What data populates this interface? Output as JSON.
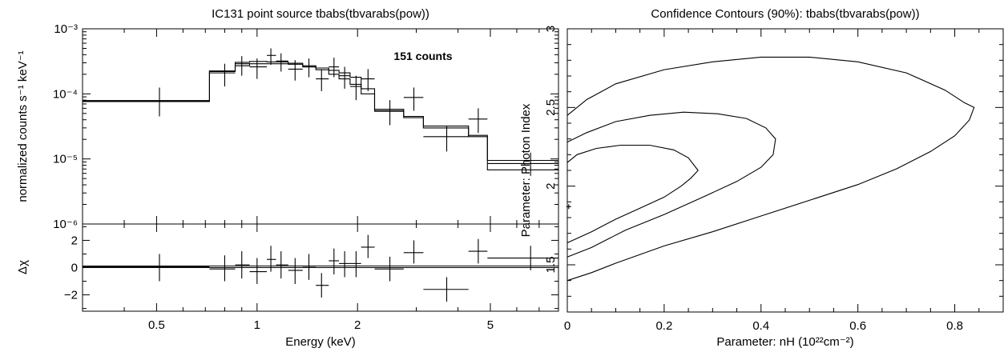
{
  "chart_data": [
    {
      "type": "line",
      "title": "IC131 point source tbabs(tbvarabs(pow))",
      "annotation": "151 counts",
      "xlabel": "Energy (keV)",
      "xscale": "log",
      "xlim": [
        0.3,
        8.0
      ],
      "xticks": [
        0.5,
        1,
        2,
        5
      ],
      "xtick_labels": [
        "0.5",
        "1",
        "2",
        "5"
      ],
      "top_panel": {
        "ylabel": "normalized counts s⁻¹ keV⁻¹",
        "yscale": "log",
        "ylim": [
          1e-06,
          0.001
        ],
        "ytick_labels": [
          "10⁻³",
          "10⁻⁴",
          "10⁻⁵",
          "10⁻⁶"
        ],
        "data_points": [
          {
            "x": 0.51,
            "xerr": [
              0.3,
              0.72
            ],
            "y": 7.7e-05,
            "yerr": [
              4.5e-05,
              0.000125
            ]
          },
          {
            "x": 0.8,
            "xerr": [
              0.72,
              0.86
            ],
            "y": 0.00021,
            "yerr": [
              0.00013,
              0.00029
            ]
          },
          {
            "x": 0.9,
            "xerr": [
              0.86,
              0.95
            ],
            "y": 0.00029,
            "yerr": [
              0.00019,
              0.00038
            ]
          },
          {
            "x": 1.0,
            "xerr": [
              0.95,
              1.07
            ],
            "y": 0.00026,
            "yerr": [
              0.00017,
              0.00035
            ]
          },
          {
            "x": 1.1,
            "xerr": [
              1.07,
              1.14
            ],
            "y": 0.00039,
            "yerr": [
              0.00028,
              0.0005
            ]
          },
          {
            "x": 1.18,
            "xerr": [
              1.14,
              1.24
            ],
            "y": 0.00032,
            "yerr": [
              0.00022,
              0.00042
            ]
          },
          {
            "x": 1.3,
            "xerr": [
              1.24,
              1.37
            ],
            "y": 0.00024,
            "yerr": [
              0.00016,
              0.00033
            ]
          },
          {
            "x": 1.43,
            "xerr": [
              1.37,
              1.5
            ],
            "y": 0.00026,
            "yerr": [
              0.00018,
              0.00035
            ]
          },
          {
            "x": 1.56,
            "xerr": [
              1.5,
              1.64
            ],
            "y": 0.00017,
            "yerr": [
              0.00011,
              0.00024
            ]
          },
          {
            "x": 1.7,
            "xerr": [
              1.64,
              1.76
            ],
            "y": 0.00026,
            "yerr": [
              0.00018,
              0.00036
            ]
          },
          {
            "x": 1.83,
            "xerr": [
              1.76,
              1.9
            ],
            "y": 0.00019,
            "yerr": [
              0.00012,
              0.00026
            ]
          },
          {
            "x": 1.98,
            "xerr": [
              1.9,
              2.05
            ],
            "y": 0.00013,
            "yerr": [
              8e-05,
              0.00019
            ]
          },
          {
            "x": 2.15,
            "xerr": [
              2.05,
              2.25
            ],
            "y": 0.00017,
            "yerr": [
              0.00011,
              0.00024
            ]
          },
          {
            "x": 2.5,
            "xerr": [
              2.25,
              2.75
            ],
            "y": 5.5e-05,
            "yerr": [
              3.3e-05,
              8e-05
            ]
          },
          {
            "x": 2.95,
            "xerr": [
              2.75,
              3.15
            ],
            "y": 8.8e-05,
            "yerr": [
              5.5e-05,
              0.000125
            ]
          },
          {
            "x": 3.7,
            "xerr": [
              3.15,
              4.3
            ],
            "y": 2.2e-05,
            "yerr": [
              1.3e-05,
              3.2e-05
            ]
          },
          {
            "x": 4.6,
            "xerr": [
              4.3,
              4.9
            ],
            "y": 4.1e-05,
            "yerr": [
              2.5e-05,
              6e-05
            ]
          },
          {
            "x": 6.6,
            "xerr": [
              4.9,
              8.0
            ],
            "y": 8.5e-06,
            "yerr": [
              5.5e-06,
              1.25e-05
            ]
          }
        ],
        "model_steps": [
          {
            "name": "model-a",
            "edges": [
              0.3,
              0.72,
              0.86,
              0.95,
              1.07,
              1.24,
              1.37,
              1.5,
              1.64,
              1.76,
              1.9,
              2.05,
              2.25,
              2.75,
              3.15,
              4.3,
              4.9,
              8.0
            ],
            "values": [
              7.9e-05,
              0.000225,
              0.000305,
              0.000315,
              0.00031,
              0.000295,
              0.00027,
              0.00025,
              0.00023,
              0.00021,
              0.00018,
              0.00012,
              5.8e-05,
              4.5e-05,
              3.2e-05,
              2.3e-05,
              9.5e-06
            ]
          },
          {
            "name": "model-b",
            "edges": [
              0.3,
              0.72,
              0.86,
              0.95,
              1.07,
              1.24,
              1.37,
              1.5,
              1.64,
              1.76,
              1.9,
              2.05,
              2.25,
              2.75,
              3.15,
              4.3,
              4.9,
              8.0
            ],
            "values": [
              7.6e-05,
              0.00022,
              0.00027,
              0.00029,
              0.00029,
              0.000285,
              0.00026,
              0.000235,
              0.0002,
              0.00017,
              0.00014,
              0.0001,
              5.4e-05,
              4.3e-05,
              3e-05,
              2.2e-05,
              6.8e-06
            ]
          }
        ]
      },
      "bottom_panel": {
        "ylabel": "Δχ",
        "ylim": [
          -3.2,
          3.2
        ],
        "yticks": [
          -2,
          0,
          2
        ],
        "ytick_labels": [
          "−2",
          "0",
          "2"
        ],
        "zero_line": true,
        "residuals": [
          {
            "x": 0.51,
            "xerr": [
              0.3,
              0.72
            ],
            "y": 0.05,
            "yerr": [
              -1.0,
              1.0
            ]
          },
          {
            "x": 0.8,
            "xerr": [
              0.72,
              0.86
            ],
            "y": -0.1,
            "yerr": [
              -1.0,
              0.9
            ]
          },
          {
            "x": 0.9,
            "xerr": [
              0.86,
              0.95
            ],
            "y": 0.2,
            "yerr": [
              -0.8,
              1.2
            ]
          },
          {
            "x": 1.0,
            "xerr": [
              0.95,
              1.07
            ],
            "y": -0.3,
            "yerr": [
              -1.2,
              0.7
            ]
          },
          {
            "x": 1.1,
            "xerr": [
              1.07,
              1.14
            ],
            "y": 0.6,
            "yerr": [
              -0.3,
              1.6
            ]
          },
          {
            "x": 1.18,
            "xerr": [
              1.14,
              1.24
            ],
            "y": 0.2,
            "yerr": [
              -0.8,
              1.2
            ]
          },
          {
            "x": 1.3,
            "xerr": [
              1.24,
              1.37
            ],
            "y": -0.2,
            "yerr": [
              -1.2,
              0.7
            ]
          },
          {
            "x": 1.43,
            "xerr": [
              1.37,
              1.5
            ],
            "y": 0.1,
            "yerr": [
              -0.9,
              1.0
            ]
          },
          {
            "x": 1.56,
            "xerr": [
              1.5,
              1.64
            ],
            "y": -1.3,
            "yerr": [
              -2.2,
              -0.4
            ]
          },
          {
            "x": 1.7,
            "xerr": [
              1.64,
              1.76
            ],
            "y": 0.5,
            "yerr": [
              -0.5,
              1.4
            ]
          },
          {
            "x": 1.83,
            "xerr": [
              1.76,
              1.9
            ],
            "y": 0.3,
            "yerr": [
              -0.7,
              1.2
            ]
          },
          {
            "x": 1.98,
            "xerr": [
              1.9,
              2.05
            ],
            "y": 0.3,
            "yerr": [
              -0.7,
              1.2
            ]
          },
          {
            "x": 2.15,
            "xerr": [
              2.05,
              2.25
            ],
            "y": 1.5,
            "yerr": [
              0.7,
              2.4
            ]
          },
          {
            "x": 2.5,
            "xerr": [
              2.25,
              2.75
            ],
            "y": -0.1,
            "yerr": [
              -1.0,
              0.8
            ]
          },
          {
            "x": 2.95,
            "xerr": [
              2.75,
              3.15
            ],
            "y": 1.1,
            "yerr": [
              0.3,
              2.0
            ]
          },
          {
            "x": 3.7,
            "xerr": [
              3.15,
              4.3
            ],
            "y": -1.6,
            "yerr": [
              -2.5,
              -0.7
            ]
          },
          {
            "x": 4.6,
            "xerr": [
              4.3,
              4.9
            ],
            "y": 1.2,
            "yerr": [
              0.3,
              2.1
            ]
          },
          {
            "x": 6.6,
            "xerr": [
              4.9,
              8.0
            ],
            "y": 0.7,
            "yerr": [
              -0.2,
              1.6
            ]
          }
        ]
      }
    },
    {
      "type": "line",
      "title": "Confidence Contours (90%): tbabs(tbvarabs(pow))",
      "xlabel": "Parameter: nH (10²²cm⁻²)",
      "ylabel": "Parameter: Photon Index",
      "xlim": [
        0,
        0.9
      ],
      "ylim": [
        1.2,
        3.0
      ],
      "xticks": [
        0,
        0.2,
        0.4,
        0.6,
        0.8
      ],
      "xtick_labels": [
        "0",
        "0.2",
        "0.4",
        "0.6",
        "0.8"
      ],
      "yticks": [
        1.5,
        2,
        2.5,
        3
      ],
      "ytick_labels": [
        "1.5",
        "2",
        "2.5",
        "3"
      ],
      "best_fit": {
        "x": 0.003,
        "y": 1.87
      },
      "contours": [
        {
          "name": "inner",
          "points": [
            [
              0,
              2.15
            ],
            [
              0.02,
              2.2
            ],
            [
              0.06,
              2.24
            ],
            [
              0.11,
              2.26
            ],
            [
              0.17,
              2.26
            ],
            [
              0.22,
              2.23
            ],
            [
              0.25,
              2.18
            ],
            [
              0.27,
              2.1
            ],
            [
              0.255,
              2.05
            ],
            [
              0.235,
              2.0
            ],
            [
              0.2,
              1.93
            ],
            [
              0.15,
              1.86
            ],
            [
              0.1,
              1.79
            ],
            [
              0.05,
              1.71
            ],
            [
              0,
              1.64
            ]
          ]
        },
        {
          "name": "middle",
          "points": [
            [
              0,
              2.28
            ],
            [
              0.04,
              2.34
            ],
            [
              0.1,
              2.41
            ],
            [
              0.17,
              2.45
            ],
            [
              0.24,
              2.47
            ],
            [
              0.31,
              2.46
            ],
            [
              0.37,
              2.43
            ],
            [
              0.41,
              2.37
            ],
            [
              0.43,
              2.3
            ],
            [
              0.425,
              2.2
            ],
            [
              0.4,
              2.12
            ],
            [
              0.35,
              2.03
            ],
            [
              0.28,
              1.93
            ],
            [
              0.2,
              1.82
            ],
            [
              0.12,
              1.72
            ],
            [
              0.05,
              1.61
            ],
            [
              0,
              1.55
            ]
          ]
        },
        {
          "name": "outer",
          "points": [
            [
              0,
              2.45
            ],
            [
              0.04,
              2.55
            ],
            [
              0.1,
              2.65
            ],
            [
              0.2,
              2.74
            ],
            [
              0.3,
              2.79
            ],
            [
              0.4,
              2.82
            ],
            [
              0.5,
              2.82
            ],
            [
              0.6,
              2.79
            ],
            [
              0.7,
              2.72
            ],
            [
              0.78,
              2.61
            ],
            [
              0.82,
              2.53
            ],
            [
              0.84,
              2.5
            ],
            [
              0.83,
              2.42
            ],
            [
              0.8,
              2.32
            ],
            [
              0.75,
              2.22
            ],
            [
              0.68,
              2.11
            ],
            [
              0.6,
              2.01
            ],
            [
              0.5,
              1.91
            ],
            [
              0.4,
              1.81
            ],
            [
              0.3,
              1.71
            ],
            [
              0.2,
              1.62
            ],
            [
              0.1,
              1.51
            ],
            [
              0.05,
              1.45
            ],
            [
              0,
              1.4
            ]
          ]
        }
      ]
    }
  ]
}
